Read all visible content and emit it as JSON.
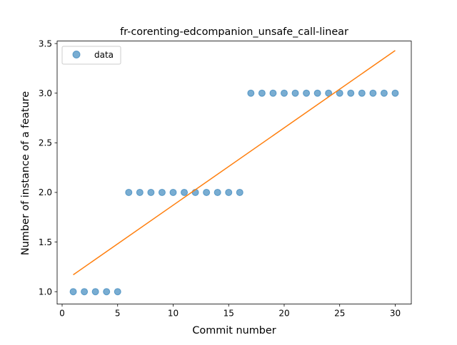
{
  "chart_data": {
    "type": "scatter",
    "title": "fr-corenting-edcompanion_unsafe_call-linear",
    "xlabel": "Commit number",
    "ylabel": "Number of instance of a feature",
    "xlim": [
      -0.45,
      31.45
    ],
    "ylim": [
      0.875,
      3.525
    ],
    "xticks": [
      0,
      5,
      10,
      15,
      20,
      25,
      30
    ],
    "yticks": [
      1.0,
      1.5,
      2.0,
      2.5,
      3.0,
      3.5
    ],
    "xtick_labels": [
      "0",
      "5",
      "10",
      "15",
      "20",
      "25",
      "30"
    ],
    "ytick_labels": [
      "1.0",
      "1.5",
      "2.0",
      "2.5",
      "3.0",
      "3.5"
    ],
    "grid": false,
    "legend": {
      "entries": [
        "data"
      ],
      "placement": "top-left"
    },
    "series": [
      {
        "name": "data",
        "kind": "scatter",
        "color": "#1f77b4",
        "x": [
          1,
          2,
          3,
          4,
          5,
          6,
          7,
          8,
          9,
          10,
          11,
          12,
          13,
          14,
          15,
          16,
          17,
          18,
          19,
          20,
          21,
          22,
          23,
          24,
          25,
          26,
          27,
          28,
          29,
          30
        ],
        "y": [
          1,
          1,
          1,
          1,
          1,
          2,
          2,
          2,
          2,
          2,
          2,
          2,
          2,
          2,
          2,
          2,
          3,
          3,
          3,
          3,
          3,
          3,
          3,
          3,
          3,
          3,
          3,
          3,
          3,
          3
        ]
      },
      {
        "kind": "line",
        "color": "#ff7f0e",
        "x": [
          1,
          30
        ],
        "y": [
          1.17,
          3.43
        ]
      }
    ]
  }
}
